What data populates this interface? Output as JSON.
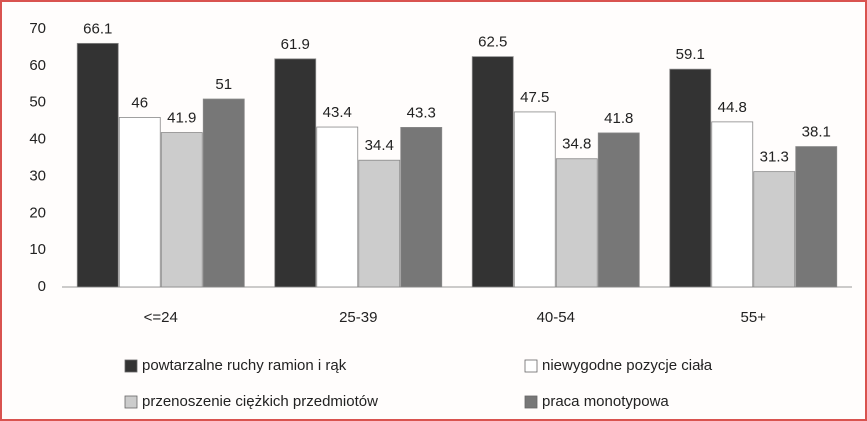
{
  "chart_data": {
    "type": "bar",
    "categories": [
      "<=24",
      "25-39",
      "40-54",
      "55+"
    ],
    "series": [
      {
        "name": "powtarzalne ruchy ramion i rąk",
        "color": "#333333",
        "values": [
          66.1,
          61.9,
          62.5,
          59.1
        ]
      },
      {
        "name": "niewygodne pozycje ciała",
        "color": "#ffffff",
        "values": [
          46,
          43.4,
          47.5,
          44.8
        ]
      },
      {
        "name": "przenoszenie ciężkich przedmiotów",
        "color": "#cccccc",
        "values": [
          41.9,
          34.4,
          34.8,
          31.3
        ]
      },
      {
        "name": "praca monotypowa",
        "color": "#777777",
        "values": [
          51,
          43.3,
          41.8,
          38.1
        ]
      }
    ],
    "ylim": [
      0,
      70
    ],
    "yticks": [
      0,
      10,
      20,
      30,
      40,
      50,
      60,
      70
    ],
    "grid": false,
    "legend": "bottom"
  }
}
